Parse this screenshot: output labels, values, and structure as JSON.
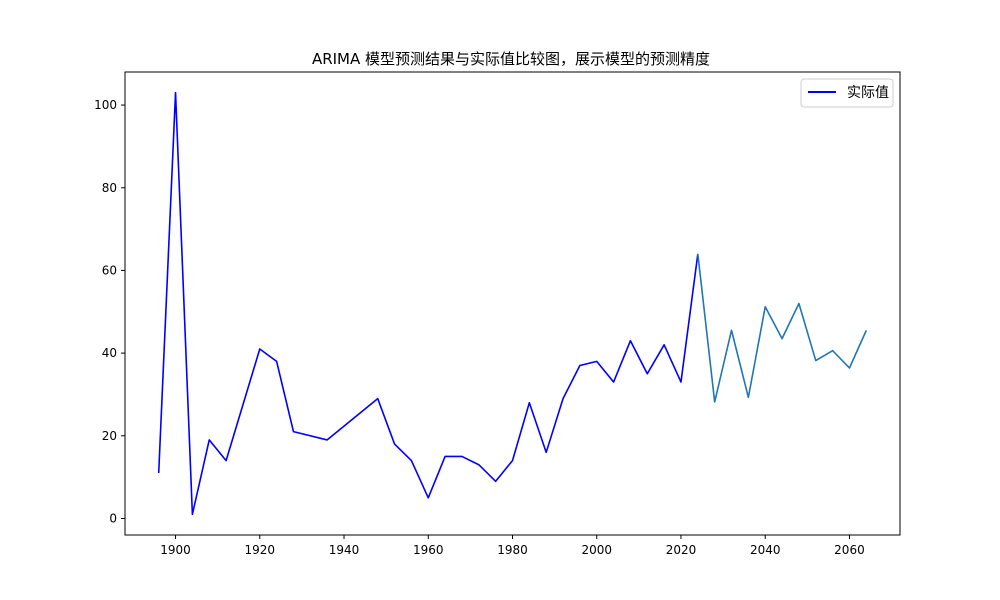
{
  "chart_data": {
    "type": "line",
    "title": "ARIMA 模型预测结果与实际值比较图，展示模型的预测精度",
    "xlabel": "",
    "ylabel": "",
    "xlim": [
      1888,
      2072
    ],
    "ylim": [
      -4,
      108
    ],
    "xticks": [
      1900,
      1920,
      1940,
      1960,
      1980,
      2000,
      2020,
      2040,
      2060
    ],
    "yticks": [
      0,
      20,
      40,
      60,
      80,
      100
    ],
    "grid": false,
    "legend_position": "top-right",
    "series": [
      {
        "name": "实际值",
        "color": "#0000ff",
        "in_legend": true,
        "x": [
          1896,
          1900,
          1904,
          1908,
          1912,
          1920,
          1924,
          1928,
          1936,
          1948,
          1952,
          1956,
          1960,
          1964,
          1968,
          1972,
          1976,
          1980,
          1984,
          1988,
          1992,
          1996,
          2000,
          2004,
          2008,
          2012,
          2016,
          2020,
          2024
        ],
        "y": [
          11,
          103,
          1,
          19,
          14,
          41,
          38,
          21,
          19,
          29,
          18,
          14,
          5,
          15,
          15,
          13,
          9,
          14,
          28,
          16,
          29,
          37,
          38,
          33,
          43,
          35,
          42,
          33,
          64
        ]
      },
      {
        "name": "",
        "color": "#1f77b4",
        "in_legend": false,
        "x": [
          2024,
          2028,
          2032,
          2036,
          2040,
          2044,
          2048,
          2052,
          2056,
          2060,
          2064
        ],
        "y": [
          64,
          28.2,
          45.5,
          29.3,
          51.2,
          43.5,
          52,
          38.2,
          40.6,
          36.4,
          45.5
        ]
      }
    ]
  }
}
